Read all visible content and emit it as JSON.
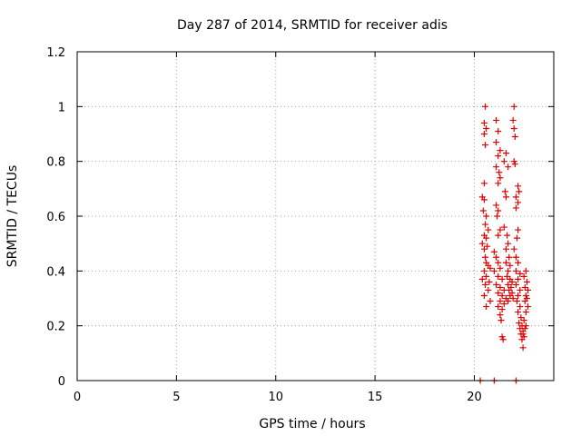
{
  "chart_data": {
    "type": "scatter",
    "title": "Day 287 of 2014, SRMTID for receiver adis",
    "xlabel": "GPS time / hours",
    "ylabel": "SRMTID / TECUs",
    "xlim": [
      0,
      24
    ],
    "ylim": [
      0,
      1.2
    ],
    "xticks": [
      0,
      5,
      10,
      15,
      20
    ],
    "yticks": [
      0,
      0.2,
      0.4,
      0.6,
      0.8,
      1,
      1.2
    ],
    "xtick_labels": [
      "0",
      "5",
      "10",
      "15",
      "20"
    ],
    "ytick_labels": [
      "0",
      "0.2",
      "0.4",
      "0.6",
      "0.8",
      "1",
      "1.2"
    ],
    "grid": true,
    "marker": "+",
    "color": "#e00000",
    "series": [
      {
        "name": "SRMTID",
        "points": [
          [
            20.3,
            0.0
          ],
          [
            21.0,
            0.0
          ],
          [
            22.1,
            0.0
          ],
          [
            20.4,
            0.67
          ],
          [
            20.5,
            0.66
          ],
          [
            20.45,
            0.62
          ],
          [
            20.6,
            0.6
          ],
          [
            20.55,
            0.57
          ],
          [
            20.7,
            0.55
          ],
          [
            20.5,
            0.53
          ],
          [
            20.6,
            0.52
          ],
          [
            20.4,
            0.5
          ],
          [
            20.65,
            0.49
          ],
          [
            20.5,
            0.48
          ],
          [
            20.55,
            0.45
          ],
          [
            20.6,
            0.43
          ],
          [
            20.7,
            0.42
          ],
          [
            20.8,
            0.41
          ],
          [
            20.5,
            0.4
          ],
          [
            20.6,
            0.38
          ],
          [
            20.4,
            0.37
          ],
          [
            20.75,
            0.36
          ],
          [
            20.55,
            0.35
          ],
          [
            20.7,
            0.33
          ],
          [
            20.5,
            0.31
          ],
          [
            20.8,
            0.29
          ],
          [
            20.6,
            0.27
          ],
          [
            20.55,
            1.0
          ],
          [
            20.5,
            0.94
          ],
          [
            20.6,
            0.92
          ],
          [
            20.5,
            0.9
          ],
          [
            20.55,
            0.86
          ],
          [
            20.5,
            0.72
          ],
          [
            21.1,
            0.95
          ],
          [
            21.2,
            0.91
          ],
          [
            21.1,
            0.87
          ],
          [
            21.3,
            0.84
          ],
          [
            21.2,
            0.82
          ],
          [
            21.1,
            0.78
          ],
          [
            21.25,
            0.76
          ],
          [
            21.3,
            0.74
          ],
          [
            21.2,
            0.72
          ],
          [
            21.1,
            0.64
          ],
          [
            21.2,
            0.62
          ],
          [
            21.15,
            0.6
          ],
          [
            21.3,
            0.55
          ],
          [
            21.2,
            0.53
          ],
          [
            21.0,
            0.47
          ],
          [
            21.1,
            0.45
          ],
          [
            21.2,
            0.43
          ],
          [
            21.3,
            0.41
          ],
          [
            21.0,
            0.4
          ],
          [
            21.2,
            0.38
          ],
          [
            21.4,
            0.37
          ],
          [
            21.1,
            0.35
          ],
          [
            21.3,
            0.34
          ],
          [
            21.5,
            0.33
          ],
          [
            21.2,
            0.32
          ],
          [
            21.4,
            0.31
          ],
          [
            21.6,
            0.3
          ],
          [
            21.3,
            0.29
          ],
          [
            21.5,
            0.28
          ],
          [
            21.2,
            0.27
          ],
          [
            21.4,
            0.26
          ],
          [
            21.3,
            0.24
          ],
          [
            21.35,
            0.22
          ],
          [
            21.4,
            0.16
          ],
          [
            21.45,
            0.15
          ],
          [
            21.6,
            0.83
          ],
          [
            21.5,
            0.8
          ],
          [
            21.7,
            0.78
          ],
          [
            21.55,
            0.69
          ],
          [
            21.6,
            0.67
          ],
          [
            21.5,
            0.56
          ],
          [
            21.65,
            0.53
          ],
          [
            21.7,
            0.5
          ],
          [
            21.6,
            0.48
          ],
          [
            21.75,
            0.45
          ],
          [
            21.6,
            0.43
          ],
          [
            21.8,
            0.42
          ],
          [
            21.7,
            0.4
          ],
          [
            21.65,
            0.38
          ],
          [
            21.8,
            0.37
          ],
          [
            21.9,
            0.36
          ],
          [
            21.7,
            0.35
          ],
          [
            21.85,
            0.34
          ],
          [
            21.75,
            0.33
          ],
          [
            21.9,
            0.32
          ],
          [
            21.8,
            0.31
          ],
          [
            21.95,
            0.3
          ],
          [
            21.7,
            0.29
          ],
          [
            22.0,
            1.0
          ],
          [
            21.95,
            0.95
          ],
          [
            22.0,
            0.92
          ],
          [
            22.05,
            0.89
          ],
          [
            22.0,
            0.8
          ],
          [
            22.05,
            0.79
          ],
          [
            22.2,
            0.71
          ],
          [
            22.25,
            0.69
          ],
          [
            22.1,
            0.67
          ],
          [
            22.2,
            0.65
          ],
          [
            22.1,
            0.63
          ],
          [
            22.2,
            0.55
          ],
          [
            22.15,
            0.52
          ],
          [
            22.0,
            0.48
          ],
          [
            22.1,
            0.45
          ],
          [
            22.2,
            0.43
          ],
          [
            22.1,
            0.4
          ],
          [
            22.3,
            0.39
          ],
          [
            22.2,
            0.37
          ],
          [
            22.1,
            0.35
          ],
          [
            22.3,
            0.33
          ],
          [
            22.2,
            0.31
          ],
          [
            22.15,
            0.29
          ],
          [
            22.3,
            0.27
          ],
          [
            22.2,
            0.25
          ],
          [
            22.35,
            0.23
          ],
          [
            22.25,
            0.21
          ],
          [
            22.4,
            0.2
          ],
          [
            22.3,
            0.19
          ],
          [
            22.45,
            0.18
          ],
          [
            22.35,
            0.17
          ],
          [
            22.5,
            0.16
          ],
          [
            22.4,
            0.15
          ],
          [
            22.45,
            0.12
          ],
          [
            22.6,
            0.4
          ],
          [
            22.5,
            0.38
          ],
          [
            22.65,
            0.36
          ],
          [
            22.55,
            0.34
          ],
          [
            22.7,
            0.33
          ],
          [
            22.6,
            0.31
          ],
          [
            22.65,
            0.3
          ],
          [
            22.55,
            0.29
          ],
          [
            22.7,
            0.27
          ],
          [
            22.6,
            0.25
          ],
          [
            22.5,
            0.22
          ],
          [
            22.6,
            0.2
          ],
          [
            22.55,
            0.19
          ],
          [
            22.45,
            0.17
          ]
        ]
      }
    ]
  }
}
